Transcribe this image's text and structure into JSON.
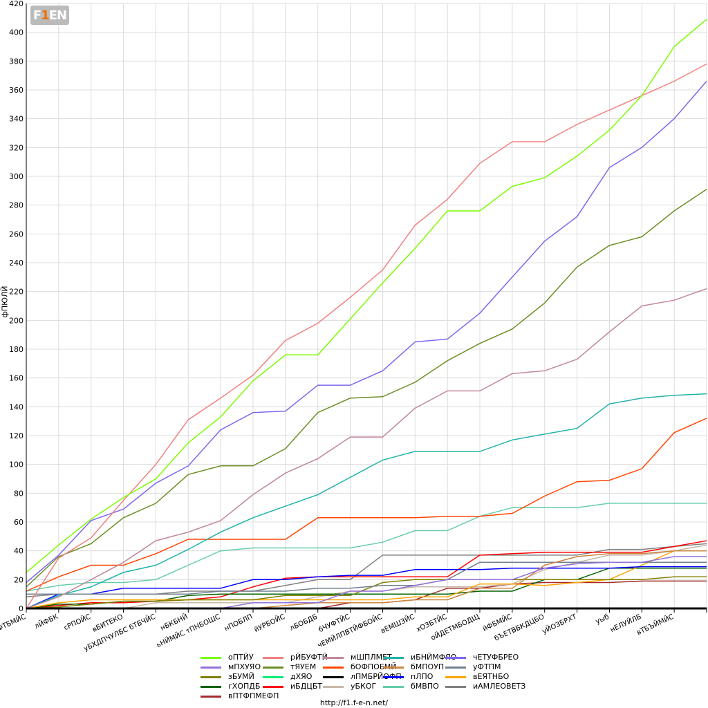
{
  "logo_text": "F1EN",
  "footer": "http://f1.f-e-n.net/",
  "chart_data": {
    "type": "line",
    "title": "",
    "xlabel": "",
    "ylabel": "фПЮЛЙ",
    "ylim": [
      0,
      420
    ],
    "yticks": [
      0,
      20,
      40,
      60,
      80,
      100,
      120,
      140,
      160,
      180,
      200,
      220,
      240,
      260,
      280,
      300,
      320,
      340,
      360,
      380,
      400,
      420
    ],
    "grid": true,
    "legend_position": "bottom",
    "categories": [
      "бЧУФТБМЙС",
      "лЙФБК",
      "сРПОЙС",
      "вБИТЕКО",
      "уБХДПЧУЛБС бТБЧЙС",
      "нБКБНЙ",
      "ьНЙМЙС тПНБОШС",
      "нПОБЛП",
      "йУРБОЙС",
      "лБОБДБ",
      "бЧУФТЙС",
      "чЕМЙЛПВТЙФБОЙС",
      "вЕМШЗЙС",
      "хОЗБТЙС",
      "оЙДЕТМБОДЩ",
      "йФБМЙС",
      "бЪЕТВБКДЦБО",
      "уЙОЗБРХТ",
      "уыб",
      "нЕЛУЙЛБ",
      "вТБЪЙМЙС",
      ""
    ],
    "series": [
      {
        "name": "оПТЙУ",
        "color": "#7cfc00",
        "values": [
          25,
          44,
          62,
          77,
          90,
          115,
          133,
          158,
          176,
          176,
          201,
          226,
          250,
          276,
          276,
          293,
          299,
          314,
          332,
          356,
          390,
          409
        ]
      },
      {
        "name": "рЙБУФТЙ",
        "color": "#f08080",
        "values": [
          0,
          35,
          49,
          75,
          100,
          131,
          146,
          162,
          186,
          198,
          216,
          235,
          266,
          284,
          309,
          324,
          324,
          336,
          346,
          356,
          366,
          378
        ]
      },
      {
        "name": "мШПЛМЕТ",
        "color": "#c08898",
        "values": [
          0,
          8,
          20,
          32,
          47,
          53,
          61,
          79,
          94,
          104,
          119,
          119,
          139,
          151,
          151,
          163,
          165,
          173,
          192,
          210,
          214,
          222
        ]
      },
      {
        "name": "иБНЙМФЯО",
        "color": "#20b2aa",
        "values": [
          0,
          9,
          15,
          25,
          30,
          41,
          53,
          63,
          71,
          79,
          91,
          103,
          109,
          109,
          109,
          117,
          121,
          125,
          142,
          146,
          148,
          149
        ]
      },
      {
        "name": "чЕТУФБРЕО",
        "color": "#7b68ee",
        "values": [
          18,
          37,
          61,
          69,
          87,
          99,
          124,
          136,
          137,
          155,
          155,
          165,
          185,
          187,
          205,
          230,
          255,
          272,
          306,
          320,
          340,
          366
        ]
      },
      {
        "name": "мПХУЯО",
        "color": "#9370db",
        "values": [
          0,
          0,
          0,
          0,
          0,
          0,
          0,
          4,
          4,
          4,
          12,
          12,
          16,
          20,
          20,
          20,
          28,
          31,
          32,
          32,
          36,
          36
        ]
      },
      {
        "name": "тЯУЕМ",
        "color": "#6b8e23",
        "values": [
          15,
          36,
          45,
          63,
          73,
          93,
          99,
          99,
          111,
          136,
          146,
          147,
          157,
          172,
          184,
          194,
          212,
          237,
          252,
          258,
          276,
          291
        ]
      },
      {
        "name": "бОФПОЕМЙ",
        "color": "#ff4500",
        "values": [
          12,
          22,
          30,
          30,
          38,
          48,
          48,
          48,
          48,
          63,
          63,
          63,
          63,
          64,
          64,
          66,
          78,
          88,
          89,
          97,
          122,
          132
        ]
      },
      {
        "name": "бМПОУП",
        "color": "#cd853f",
        "values": [
          0,
          0,
          0,
          0,
          0,
          0,
          0,
          0,
          2,
          4,
          4,
          4,
          6,
          6,
          14,
          14,
          30,
          36,
          38,
          38,
          40,
          40
        ]
      },
      {
        "name": "уФТПМ",
        "color": "#708090",
        "values": [
          10,
          10,
          10,
          10,
          10,
          10,
          12,
          12,
          12,
          14,
          14,
          16,
          16,
          20,
          32,
          32,
          32,
          32,
          32,
          32,
          32,
          32
        ]
      },
      {
        "name": "зБУМЙ",
        "color": "#808000",
        "values": [
          0,
          1,
          3,
          5,
          5,
          6,
          6,
          6,
          9,
          9,
          9,
          18,
          20,
          20,
          20,
          20,
          20,
          20,
          20,
          20,
          22,
          22
        ]
      },
      {
        "name": "дХЯО",
        "color": "#00ee76",
        "values": [
          0,
          0,
          0,
          0,
          0,
          0,
          0,
          0,
          0,
          0,
          0,
          0,
          0,
          0,
          0,
          0,
          0,
          0,
          0,
          0,
          0,
          0
        ]
      },
      {
        "name": "лПМБРЙОФП",
        "color": "#000000",
        "values": [
          0,
          0,
          0,
          0,
          0,
          0,
          0,
          0,
          0,
          0,
          0,
          0,
          0,
          0,
          0,
          0,
          0,
          0,
          0,
          0,
          0,
          0
        ]
      },
      {
        "name": "пЛПО",
        "color": "#0000ff",
        "values": [
          0,
          10,
          10,
          14,
          14,
          14,
          14,
          20,
          20,
          22,
          23,
          23,
          27,
          27,
          27,
          28,
          28,
          28,
          28,
          29,
          29,
          29
        ]
      },
      {
        "name": "вЕЯТНБО",
        "color": "#ffa500",
        "values": [
          0,
          4,
          6,
          6,
          6,
          6,
          6,
          6,
          6,
          6,
          6,
          6,
          8,
          8,
          17,
          17,
          16,
          18,
          20,
          30,
          40,
          40
        ]
      },
      {
        "name": "гХОПДБ",
        "color": "#006400",
        "values": [
          0,
          3,
          3,
          5,
          5,
          9,
          10,
          10,
          10,
          10,
          10,
          10,
          10,
          10,
          12,
          12,
          20,
          20,
          28,
          28,
          28,
          28
        ]
      },
      {
        "name": "иБДЦБТ",
        "color": "#ff0000",
        "values": [
          0,
          2,
          4,
          4,
          5,
          6,
          8,
          15,
          21,
          22,
          22,
          22,
          22,
          22,
          37,
          38,
          39,
          39,
          39,
          39,
          43,
          47
        ]
      },
      {
        "name": "уБКОГ",
        "color": "#c8b8a8",
        "values": [
          0,
          0,
          0,
          0,
          4,
          4,
          4,
          4,
          4,
          8,
          12,
          12,
          15,
          15,
          15,
          17,
          27,
          32,
          37,
          37,
          40,
          44
        ]
      },
      {
        "name": "бМВПО",
        "color": "#66cdaa",
        "values": [
          12,
          16,
          18,
          18,
          20,
          30,
          40,
          42,
          42,
          42,
          42,
          46,
          54,
          54,
          64,
          70,
          70,
          70,
          73,
          73,
          73,
          73
        ]
      },
      {
        "name": "иАМЛЕОВЕТЗ",
        "color": "#808080",
        "values": [
          8,
          10,
          10,
          10,
          10,
          12,
          12,
          12,
          16,
          20,
          20,
          37,
          37,
          37,
          37,
          37,
          37,
          37,
          41,
          41,
          43,
          45
        ]
      },
      {
        "name": "вПТФПМЕФП",
        "color": "#a52a2a",
        "values": [
          0,
          0,
          0,
          0,
          0,
          0,
          0,
          0,
          0,
          0,
          4,
          4,
          6,
          14,
          14,
          17,
          18,
          18,
          18,
          19,
          19,
          19
        ]
      }
    ]
  }
}
